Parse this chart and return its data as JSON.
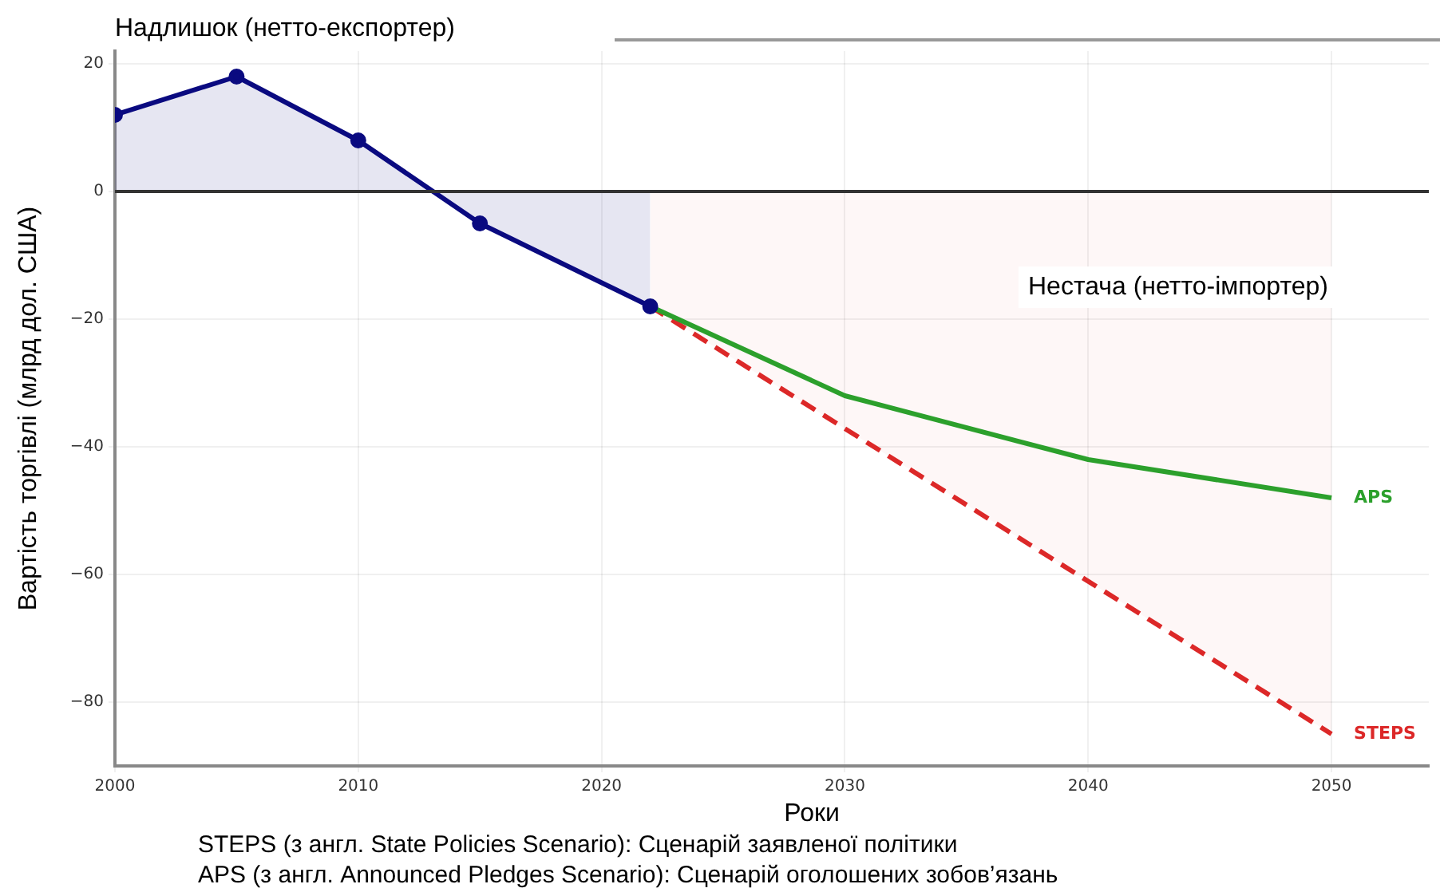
{
  "chart_data": {
    "type": "line",
    "xlabel": "Роки",
    "ylabel": "Вартість торгівлі (млрд дол. США)",
    "annotations": [
      "Надлишок (нетто-експортер)",
      "Нестача (нетто-імпортер)",
      "STEPS (з англ. State Policies Scenario): Сценарій заявленої політики",
      "APS (з англ. Announced Pledges Scenario): Сценарій оголошених зобов’язань"
    ],
    "series": [
      {
        "type": "area",
        "color": "#0a0a80",
        "marker": "circle",
        "x": [
          2000,
          2005,
          2010,
          2015,
          2022
        ],
        "values": [
          12,
          18,
          8,
          -5,
          -18
        ]
      },
      {
        "name": "APS",
        "color": "#2ca02c",
        "x": [
          2022,
          2030,
          2040,
          2050
        ],
        "values": [
          -18,
          -32,
          -42,
          -48
        ]
      },
      {
        "type": "area",
        "name": "STEPS",
        "color": "#dc2828",
        "line_style": "dashed",
        "x": [
          2022,
          2050
        ],
        "values": [
          -18,
          -85
        ]
      }
    ],
    "xlim": [
      2000,
      2054
    ],
    "xticks": [
      2000,
      2010,
      2020,
      2030,
      2040,
      2050
    ],
    "ylim": [
      -90,
      22
    ],
    "yticks": [
      -80,
      -60,
      -40,
      -20,
      0,
      20
    ],
    "grid": true,
    "legend": false,
    "ref_lines": [
      {
        "axis": "y",
        "value": 0,
        "color": "#333333"
      }
    ]
  }
}
